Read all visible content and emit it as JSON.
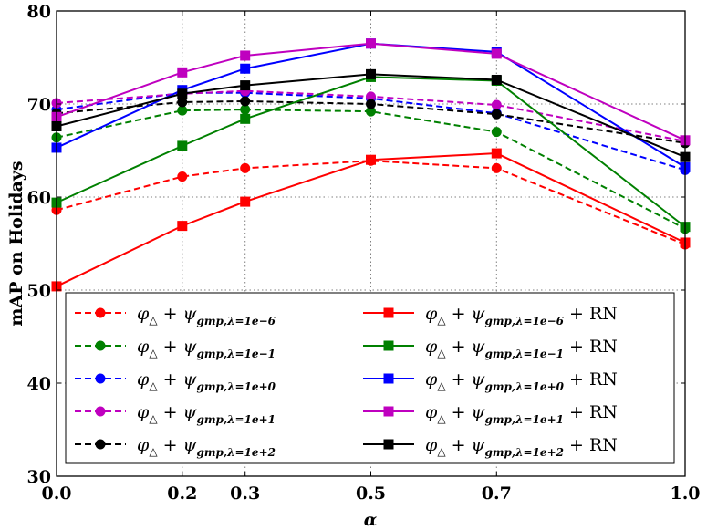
{
  "chart_data": {
    "type": "line",
    "title": "",
    "xlabel": "α",
    "ylabel": "mAP on Holidays",
    "xlim": [
      0.0,
      1.0
    ],
    "ylim": [
      30,
      80
    ],
    "xticks": [
      0.0,
      0.2,
      0.3,
      0.5,
      0.7,
      1.0
    ],
    "xtick_labels": [
      "0.0",
      "0.2",
      "0.3",
      "0.5",
      "0.7",
      "1.0"
    ],
    "yticks": [
      30,
      40,
      50,
      60,
      70,
      80
    ],
    "ytick_labels": [
      "30",
      "40",
      "50",
      "60",
      "70",
      "80"
    ],
    "grid": true,
    "legend_position": "bottom",
    "x": [
      0.0,
      0.2,
      0.3,
      0.5,
      0.7,
      1.0
    ],
    "series": [
      {
        "name": "φ△ + ψgmp,λ=1e−6",
        "lambda": "1e−6",
        "rn": false,
        "color": "#ff0000",
        "style": "dashed",
        "marker": "circle",
        "values": [
          58.6,
          62.2,
          63.1,
          63.9,
          63.1,
          54.9
        ]
      },
      {
        "name": "φ△ + ψgmp,λ=1e−1",
        "lambda": "1e−1",
        "rn": false,
        "color": "#008000",
        "style": "dashed",
        "marker": "circle",
        "values": [
          66.4,
          69.3,
          69.4,
          69.2,
          67.0,
          56.6
        ]
      },
      {
        "name": "φ△ + ψgmp,λ=1e+0",
        "lambda": "1e+0",
        "rn": false,
        "color": "#0000ff",
        "style": "dashed",
        "marker": "circle",
        "values": [
          69.4,
          71.2,
          71.2,
          70.6,
          69.0,
          62.9
        ]
      },
      {
        "name": "φ△ + ψgmp,λ=1e+1",
        "lambda": "1e+1",
        "rn": false,
        "color": "#bf00bf",
        "style": "dashed",
        "marker": "circle",
        "values": [
          70.1,
          71.1,
          71.4,
          70.8,
          69.9,
          66.0
        ]
      },
      {
        "name": "φ△ + ψgmp,λ=1e+2",
        "lambda": "1e+2",
        "rn": false,
        "color": "#000000",
        "style": "dashed",
        "marker": "circle",
        "values": [
          69.0,
          70.2,
          70.3,
          70.0,
          68.9,
          65.8
        ]
      },
      {
        "name": "φ△ + ψgmp,λ=1e−6 + RN",
        "lambda": "1e−6",
        "rn": true,
        "color": "#ff0000",
        "style": "solid",
        "marker": "square",
        "values": [
          50.4,
          56.9,
          59.5,
          64.0,
          64.7,
          55.1
        ]
      },
      {
        "name": "φ△ + ψgmp,λ=1e−1 + RN",
        "lambda": "1e−1",
        "rn": true,
        "color": "#008000",
        "style": "solid",
        "marker": "square",
        "values": [
          59.4,
          65.5,
          68.4,
          72.9,
          72.5,
          56.8
        ]
      },
      {
        "name": "φ△ + ψgmp,λ=1e+0 + RN",
        "lambda": "1e+0",
        "rn": true,
        "color": "#0000ff",
        "style": "solid",
        "marker": "square",
        "values": [
          65.3,
          71.5,
          73.8,
          76.5,
          75.6,
          63.2
        ]
      },
      {
        "name": "φ△ + ψgmp,λ=1e+1 + RN",
        "lambda": "1e+1",
        "rn": true,
        "color": "#bf00bf",
        "style": "solid",
        "marker": "square",
        "values": [
          68.6,
          73.4,
          75.2,
          76.5,
          75.4,
          66.1
        ]
      },
      {
        "name": "φ△ + ψgmp,λ=1e+2 + RN",
        "lambda": "1e+2",
        "rn": true,
        "color": "#000000",
        "style": "solid",
        "marker": "square",
        "values": [
          67.6,
          71.1,
          72.0,
          73.2,
          72.6,
          64.3
        ]
      }
    ],
    "legend_text": {
      "phi": "φ",
      "triangle": "△",
      "plus": "+",
      "psi": "ψ",
      "subscript_prefix": "gmp,λ=",
      "rn_suffix": "+ RN"
    }
  }
}
